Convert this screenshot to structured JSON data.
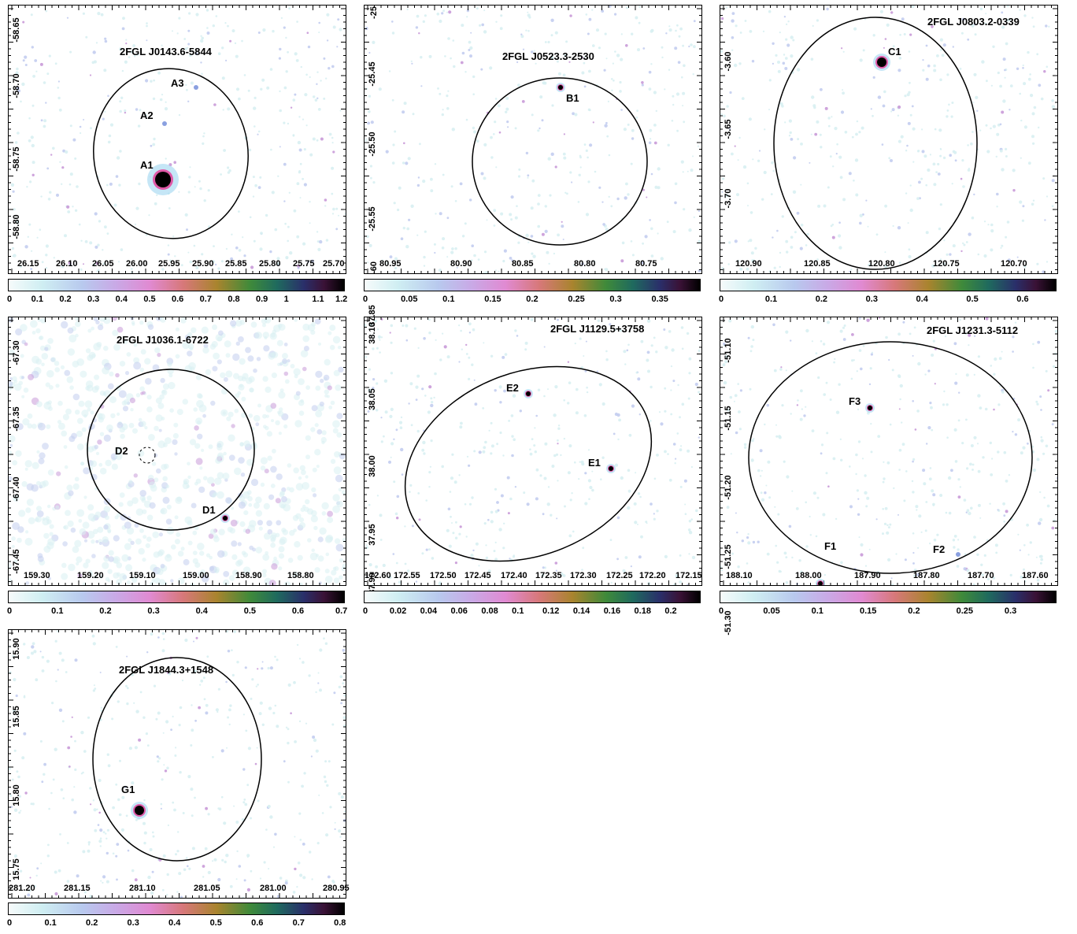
{
  "panels": [
    {
      "id": "A",
      "title": "2FGL J0143.6-5844",
      "xticks": [
        "26.15",
        "26.10",
        "26.05",
        "26.00",
        "25.95",
        "25.90",
        "25.85",
        "25.80",
        "25.75",
        "25.70"
      ],
      "yticks": [
        "-58.65",
        "-58.70",
        "-58.75",
        "-58.80"
      ],
      "cbar": [
        "0",
        "0.1",
        "0.2",
        "0.3",
        "0.4",
        "0.5",
        "0.6",
        "0.7",
        "0.8",
        "0.9",
        "1",
        "1.1",
        "1.2"
      ],
      "sources": [
        "A1",
        "A2",
        "A3"
      ]
    },
    {
      "id": "B",
      "title": "2FGL J0523.3-2530",
      "xticks": [
        "80.95",
        "80.90",
        "80.85",
        "80.80",
        "80.75"
      ],
      "yticks": [
        "-25.45",
        "-25.50",
        "-25.55"
      ],
      "yticks_edge": [
        "-25",
        "-60"
      ],
      "cbar": [
        "0",
        "0.05",
        "0.1",
        "0.15",
        "0.2",
        "0.25",
        "0.3",
        "0.35"
      ],
      "sources": [
        "B1"
      ]
    },
    {
      "id": "C",
      "title": "2FGL J0803.2-0339",
      "xticks": [
        "120.90",
        "120.85",
        "120.80",
        "120.75",
        "120.70"
      ],
      "yticks": [
        "-3.60",
        "-3.65",
        "-3.70"
      ],
      "cbar": [
        "0",
        "0.1",
        "0.2",
        "0.3",
        "0.4",
        "0.5",
        "0.6"
      ],
      "sources": [
        "C1"
      ]
    },
    {
      "id": "D",
      "title": "2FGL J1036.1-6722",
      "xticks": [
        "159.30",
        "159.20",
        "159.10",
        "159.00",
        "158.90",
        "158.80"
      ],
      "yticks": [
        "-67.30",
        "-67.35",
        "-67.40",
        "-67.45"
      ],
      "cbar": [
        "0",
        "0.1",
        "0.2",
        "0.3",
        "0.4",
        "0.5",
        "0.6",
        "0.7"
      ],
      "sources": [
        "D1",
        "D2"
      ]
    },
    {
      "id": "E",
      "title": "2FGL J1129.5+3758",
      "xticks": [
        "172.60",
        "172.55",
        "172.50",
        "172.45",
        "172.40",
        "172.35",
        "172.30",
        "172.25",
        "172.20",
        "172.15"
      ],
      "yticks": [
        "38.10",
        "38.05",
        "38.00",
        "37.95",
        "37.90",
        "37.85"
      ],
      "cbar": [
        "0",
        "0.02",
        "0.04",
        "0.06",
        "0.08",
        "0.1",
        "0.12",
        "0.14",
        "0.16",
        "0.18",
        "0.2"
      ],
      "sources": [
        "E1",
        "E2"
      ]
    },
    {
      "id": "F",
      "title": "2FGL J1231.3-5112",
      "xticks": [
        "188.10",
        "188.00",
        "187.90",
        "187.80",
        "187.70",
        "187.60"
      ],
      "yticks": [
        "-51.10",
        "-51.15",
        "-51.20",
        "-51.25",
        "-51.30"
      ],
      "cbar": [
        "0",
        "0.05",
        "0.1",
        "0.15",
        "0.2",
        "0.25",
        "0.3"
      ],
      "sources": [
        "F1",
        "F2",
        "F3"
      ]
    },
    {
      "id": "G",
      "title": "2FGL J1844.3+1548",
      "xticks": [
        "281.20",
        "281.15",
        "281.10",
        "281.05",
        "281.00",
        "280.95"
      ],
      "yticks": [
        "15.90",
        "15.85",
        "15.80",
        "15.75"
      ],
      "cbar": [
        "0",
        "0.1",
        "0.2",
        "0.3",
        "0.4",
        "0.5",
        "0.6",
        "0.7",
        "0.8"
      ],
      "sources": [
        "G1"
      ]
    }
  ],
  "colors": {
    "frame": "#000000",
    "ellipse": "#000000",
    "colormap": "cubehelix-like"
  }
}
